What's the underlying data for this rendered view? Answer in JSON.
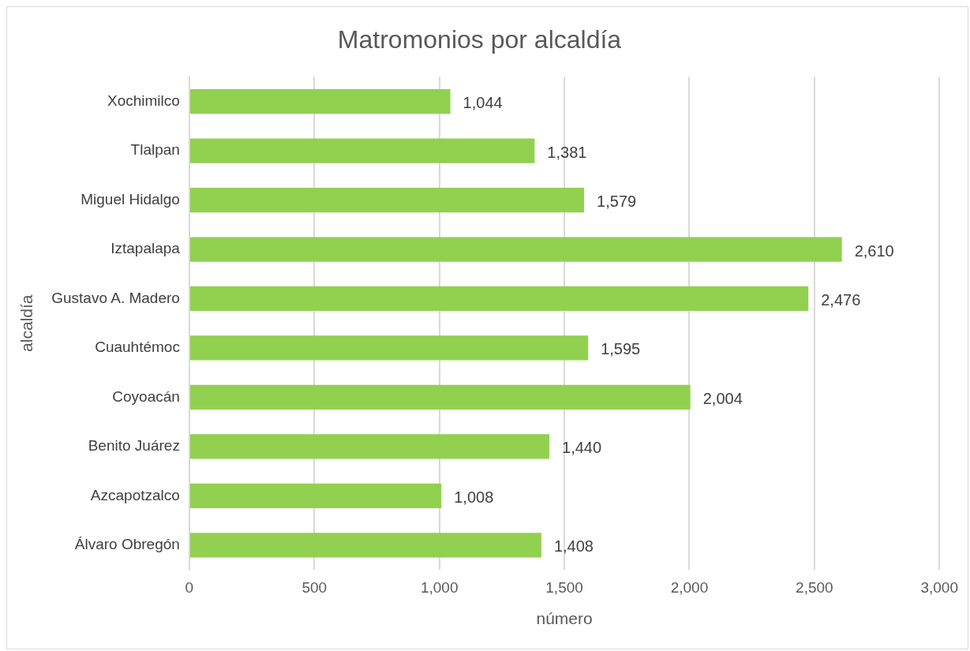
{
  "chart_data": {
    "type": "bar",
    "orientation": "horizontal",
    "title": "Matromonios por alcaldía",
    "xlabel": "número",
    "ylabel": "alcaldía",
    "categories": [
      "Xochimilco",
      "Tlalpan",
      "Miguel Hidalgo",
      "Iztapalapa",
      "Gustavo A. Madero",
      "Cuauhtémoc",
      "Coyoacán",
      "Benito Juárez",
      "Azcapotzalco",
      "Álvaro Obregón"
    ],
    "values": [
      1044,
      1381,
      1579,
      2610,
      2476,
      1595,
      2004,
      1440,
      1008,
      1408
    ],
    "value_labels": [
      "1,044",
      "1,381",
      "1,579",
      "2,610",
      "2,476",
      "1,595",
      "2,004",
      "1,440",
      "1,008",
      "1,408"
    ],
    "color": "#92d050",
    "xlim": [
      0,
      3000
    ],
    "xticks": [
      0,
      500,
      {
        "value": 1000,
        "label": "1,000"
      },
      {
        "value": 1500,
        "label": "1,500"
      },
      {
        "value": 2000,
        "label": "2,000"
      },
      {
        "value": 2500,
        "label": "2,500"
      },
      {
        "value": 3000,
        "label": "3,000"
      }
    ],
    "grid": "x",
    "legend": false
  }
}
